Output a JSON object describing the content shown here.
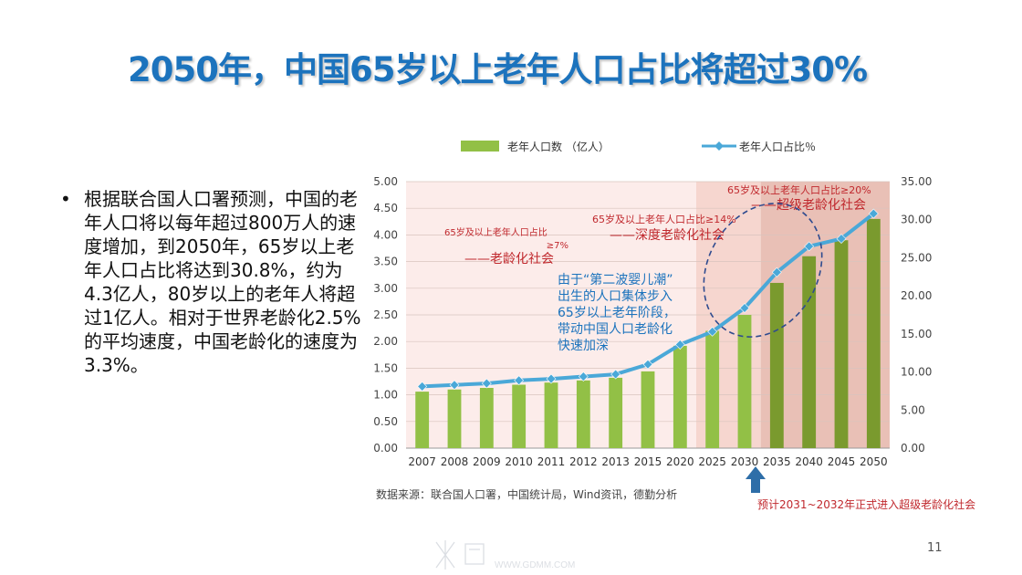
{
  "slide": {
    "title": "2050年，中国65岁以上老年人口占比将超过30%",
    "bullet": "根据联合国人口署预测，中国的老年人口将以每年超过800万人的速度增加，到2050年，65岁以上老年人口占比将达到30.8%，约为4.3亿人，80岁以上的老年人将超过1亿人。相对于世界老龄化2.5%的平均速度，中国老龄化的速度为3.3%。",
    "page_number": "11",
    "watermark": "WWW.GDMM.COM"
  },
  "colors": {
    "title": "#1c73bd",
    "bar": "#92c046",
    "bar_dark": "#7a9a2e",
    "line": "#4aa8d8",
    "label_red": "#c0282d",
    "annotation_blue": "#1c73bd",
    "zone1": "#fcecea",
    "zone2": "#f6d6cf",
    "zone3": "#e9c0b6",
    "ellipse": "#2f4b8f"
  },
  "chart_data": {
    "type": "bar+line",
    "categories": [
      "2007",
      "2008",
      "2009",
      "2010",
      "2011",
      "2012",
      "2013",
      "2015",
      "2020",
      "2025",
      "2030",
      "2035",
      "2040",
      "2045",
      "2050"
    ],
    "series": [
      {
        "name": "老年人口数（亿人）",
        "type": "bar",
        "axis": "left",
        "values": [
          1.06,
          1.1,
          1.13,
          1.19,
          1.23,
          1.27,
          1.32,
          1.44,
          1.92,
          2.2,
          2.5,
          3.1,
          3.6,
          3.9,
          4.3
        ]
      },
      {
        "name": "老年人口占比％",
        "type": "line",
        "axis": "right",
        "values": [
          8.1,
          8.3,
          8.5,
          8.9,
          9.1,
          9.4,
          9.7,
          11.0,
          13.6,
          15.3,
          18.4,
          23.1,
          26.5,
          27.5,
          30.8
        ]
      }
    ],
    "y_left": {
      "min": 0,
      "max": 5,
      "ticks": [
        "0.00",
        "0.50",
        "1.00",
        "1.50",
        "2.00",
        "2.50",
        "3.00",
        "3.50",
        "4.00",
        "4.50",
        "5.00"
      ]
    },
    "y_right": {
      "min": 0,
      "max": 35,
      "ticks": [
        "0.00",
        "5.00",
        "10.00",
        "15.00",
        "20.00",
        "25.00",
        "30.00",
        "35.00"
      ]
    },
    "legend": [
      "老年人口数 （亿人）",
      "老年人口占比％"
    ],
    "legend_position": "top",
    "zones": [
      {
        "label_line1": "65岁及以上老年人口占比",
        "label_line2": "≥7%",
        "label_line3": "——老龄化社会",
        "from_category": "2007",
        "to_category": "2020"
      },
      {
        "label_line1": "65岁及以上老年人口占比≥14%",
        "label_line2": "——深度老龄化社会",
        "from_category": "2025",
        "to_category": "2030"
      },
      {
        "label_line1": "65岁及以上老年人口占比≥20%",
        "label_line2": "——超级老龄化社会",
        "from_category": "2035",
        "to_category": "2050"
      }
    ],
    "annotation_lines": [
      "由于“第二波婴儿潮”",
      "出生的人口集体步入",
      "65岁以上老年阶段，",
      "带动中国人口老龄化",
      "快速加深"
    ],
    "source": "数据来源：联合国人口署，中国统计局，Wind资讯，德勤分析",
    "arrow_note": "预计2031~2032年正式进入超级老龄化社会"
  }
}
